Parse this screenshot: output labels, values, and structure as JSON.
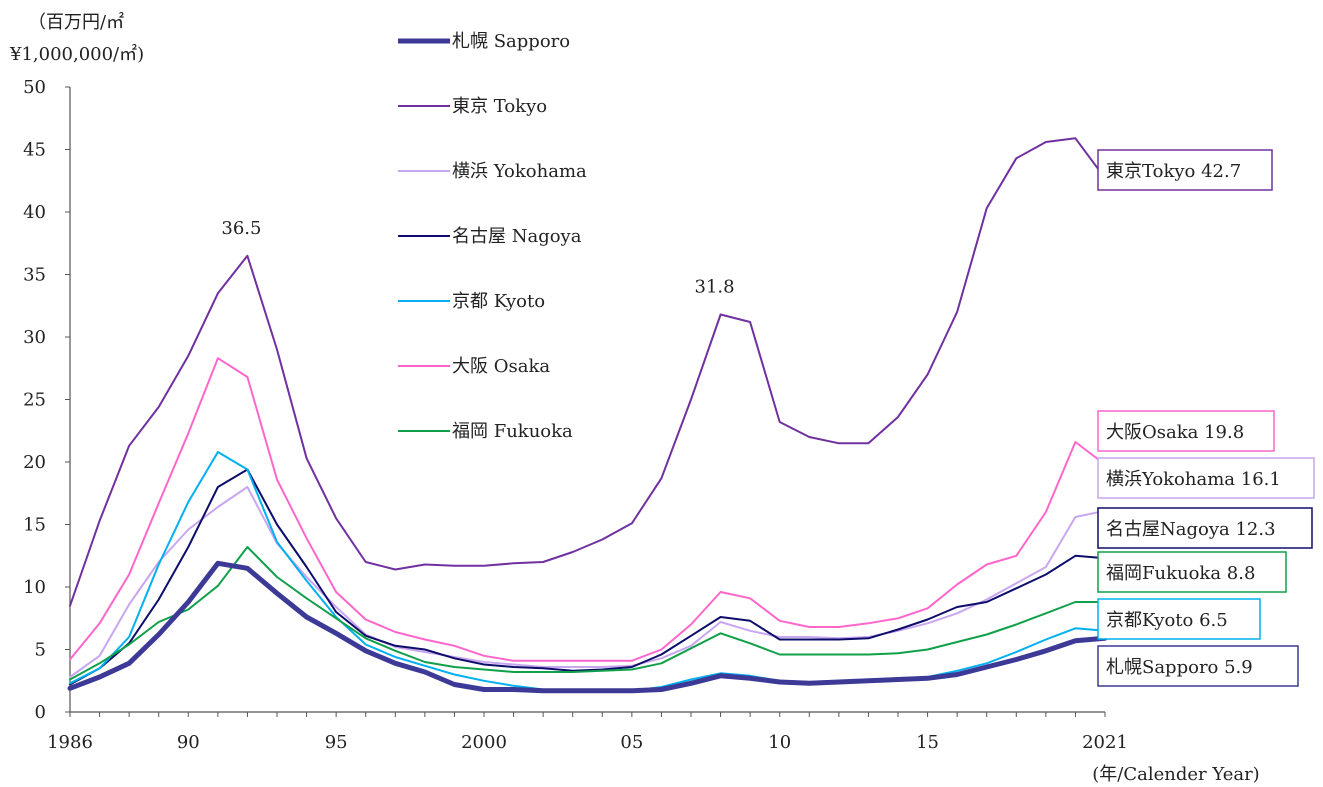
{
  "chart_data": {
    "type": "line",
    "ylabel": [
      "（百万円/㎡",
      "¥1,000,000/㎡)"
    ],
    "xlabel": "(年/Calender Year)",
    "ylim": [
      0,
      50
    ],
    "yticks": [
      0,
      5,
      10,
      15,
      20,
      25,
      30,
      35,
      40,
      45,
      50
    ],
    "xlim": [
      1986,
      2021
    ],
    "xticks": [
      {
        "value": 1986,
        "label": "1986"
      },
      {
        "value": 1990,
        "label": "90"
      },
      {
        "value": 1995,
        "label": "95"
      },
      {
        "value": 2000,
        "label": "2000"
      },
      {
        "value": 2005,
        "label": "05"
      },
      {
        "value": 2010,
        "label": "10"
      },
      {
        "value": 2015,
        "label": "15"
      },
      {
        "value": 2021,
        "label": "2021"
      }
    ],
    "grid": false,
    "legend_position": "top-center",
    "x": [
      1986,
      1987,
      1988,
      1989,
      1990,
      1991,
      1992,
      1993,
      1994,
      1995,
      1996,
      1997,
      1998,
      1999,
      2000,
      2001,
      2002,
      2003,
      2004,
      2005,
      2006,
      2007,
      2008,
      2009,
      2010,
      2011,
      2012,
      2013,
      2014,
      2015,
      2016,
      2017,
      2018,
      2019,
      2020,
      2021
    ],
    "series": [
      {
        "name": "札幌 Sapporo",
        "color": "#3c3a96",
        "width": 5,
        "values": [
          1.9,
          2.8,
          3.9,
          6.2,
          8.8,
          11.9,
          11.5,
          9.5,
          7.6,
          6.3,
          4.9,
          3.9,
          3.2,
          2.2,
          1.8,
          1.8,
          1.7,
          1.7,
          1.7,
          1.7,
          1.8,
          2.3,
          2.9,
          2.7,
          2.4,
          2.3,
          2.4,
          2.5,
          2.6,
          2.7,
          3.0,
          3.6,
          4.2,
          4.9,
          5.7,
          5.9
        ],
        "end_label": "札幌Sapporo 5.9",
        "box_color": "#3c3a96"
      },
      {
        "name": "東京 Tokyo",
        "color": "#7030a0",
        "width": 2,
        "values": [
          8.5,
          15.3,
          21.3,
          24.4,
          28.5,
          33.5,
          36.5,
          29.0,
          20.3,
          15.5,
          12.0,
          11.4,
          11.8,
          11.7,
          11.7,
          11.9,
          12.0,
          12.8,
          13.8,
          15.1,
          18.7,
          25.0,
          31.8,
          31.2,
          23.2,
          22.0,
          21.5,
          21.5,
          23.6,
          27.0,
          32.0,
          40.3,
          44.3,
          45.6,
          45.9,
          42.7
        ],
        "end_label": "東京Tokyo 42.7",
        "box_color": "#7030a0"
      },
      {
        "name": "横浜 Yokohama",
        "color": "#c9a6f0",
        "width": 2,
        "values": [
          2.8,
          4.5,
          8.6,
          12.0,
          14.6,
          16.4,
          18.0,
          13.5,
          10.8,
          8.4,
          6.2,
          5.2,
          4.8,
          4.4,
          4.0,
          3.8,
          3.6,
          3.6,
          3.6,
          3.7,
          4.3,
          5.3,
          7.2,
          6.5,
          6.0,
          6.0,
          5.9,
          6.0,
          6.5,
          7.1,
          7.9,
          9.0,
          10.3,
          11.6,
          15.6,
          16.1
        ],
        "end_label": "横浜Yokohama 16.1",
        "box_color": "#c9a6f0"
      },
      {
        "name": "名古屋 Nagoya",
        "color": "#0d0d6b",
        "width": 2,
        "values": [
          2.2,
          3.5,
          5.5,
          9.0,
          13.2,
          18.0,
          19.4,
          15.0,
          11.6,
          8.0,
          6.1,
          5.3,
          5.0,
          4.3,
          3.8,
          3.6,
          3.5,
          3.3,
          3.4,
          3.6,
          4.6,
          6.1,
          7.6,
          7.3,
          5.8,
          5.8,
          5.8,
          5.9,
          6.6,
          7.4,
          8.4,
          8.8,
          9.9,
          11.0,
          12.5,
          12.3
        ],
        "end_label": "名古屋Nagoya 12.3",
        "box_color": "#0d0d6b"
      },
      {
        "name": "京都 Kyoto",
        "color": "#00b0f0",
        "width": 2,
        "values": [
          2.3,
          3.5,
          6.0,
          11.8,
          16.8,
          20.8,
          19.4,
          13.6,
          10.5,
          7.6,
          5.4,
          4.4,
          3.7,
          3.0,
          2.5,
          2.1,
          1.8,
          1.7,
          1.7,
          1.7,
          2.0,
          2.6,
          3.1,
          2.9,
          2.5,
          2.4,
          2.5,
          2.5,
          2.6,
          2.8,
          3.3,
          3.9,
          4.8,
          5.8,
          6.7,
          6.5
        ],
        "end_label": "京都Kyoto 6.5",
        "box_color": "#00b0f0"
      },
      {
        "name": "大阪 Osaka",
        "color": "#ff66cc",
        "width": 2,
        "values": [
          4.2,
          7.1,
          11.0,
          16.7,
          22.3,
          28.3,
          26.8,
          18.6,
          13.9,
          9.6,
          7.4,
          6.4,
          5.8,
          5.3,
          4.5,
          4.1,
          4.1,
          4.1,
          4.1,
          4.1,
          5.0,
          7.0,
          9.6,
          9.1,
          7.3,
          6.8,
          6.8,
          7.1,
          7.5,
          8.3,
          10.2,
          11.8,
          12.5,
          16.0,
          21.6,
          19.8
        ],
        "end_label": "大阪Osaka 19.8",
        "box_color": "#ff66cc"
      },
      {
        "name": "福岡 Fukuoka",
        "color": "#11a04a",
        "width": 2,
        "values": [
          2.6,
          3.9,
          5.4,
          7.2,
          8.2,
          10.1,
          13.2,
          10.8,
          9.1,
          7.5,
          5.9,
          4.9,
          4.0,
          3.6,
          3.4,
          3.2,
          3.2,
          3.2,
          3.3,
          3.4,
          3.9,
          5.1,
          6.3,
          5.5,
          4.6,
          4.6,
          4.6,
          4.6,
          4.7,
          5.0,
          5.6,
          6.2,
          7.0,
          7.9,
          8.8,
          8.8
        ],
        "end_label": "福岡Fukuoka 8.8",
        "box_color": "#11a04a"
      }
    ],
    "annotations": [
      {
        "text": "36.5",
        "x": 1992,
        "y": 36.5
      },
      {
        "text": "31.8",
        "x": 2008,
        "y": 31.8
      }
    ]
  }
}
